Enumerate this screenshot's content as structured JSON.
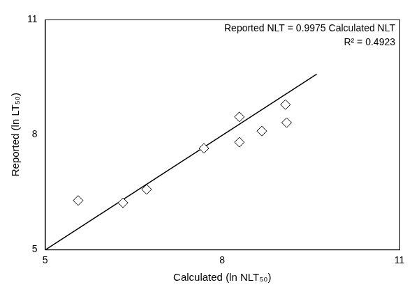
{
  "chart_data": {
    "type": "scatter",
    "x_label": "Calculated (ln NLT₅₀)",
    "y_label": "Reported (ln LT₅₀)",
    "annotations": [
      "Reported NLT = 0.9975 Calculated NLT",
      "R² = 0.4923"
    ],
    "x": [
      5.56,
      6.32,
      6.72,
      7.69,
      8.29,
      8.29,
      8.67,
      9.07,
      9.09
    ],
    "values": [
      6.28,
      6.22,
      6.57,
      7.64,
      7.8,
      8.46,
      8.09,
      8.78,
      8.31
    ],
    "color": "#000000",
    "marker": "diamond",
    "xlim": [
      5,
      11
    ],
    "ylim": [
      5,
      11
    ],
    "xticks": [
      5,
      8,
      11
    ],
    "yticks": [
      5,
      8,
      11
    ],
    "grid": false,
    "trendline": {
      "slope": 0.9975,
      "x": [
        5,
        9.6
      ],
      "color": "#000000"
    }
  }
}
